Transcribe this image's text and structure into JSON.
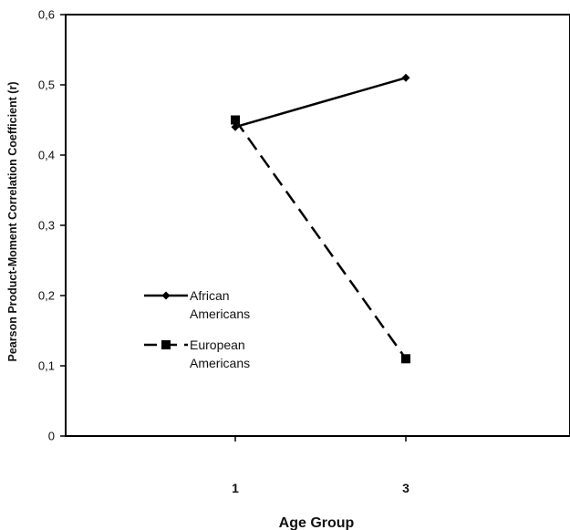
{
  "chart_data": {
    "type": "line",
    "title": "",
    "xlabel": "Age Group",
    "ylabel": "Pearson Product-Moment Correlation Coefficient (r)",
    "categories": [
      "1",
      "3"
    ],
    "ylim": [
      0,
      0.6
    ],
    "yticks": [
      "0",
      "0,1",
      "0,2",
      "0,3",
      "0,4",
      "0,5",
      "0,6"
    ],
    "grid": false,
    "legend_position": "center-left",
    "series": [
      {
        "name": "African Americans",
        "values": [
          0.44,
          0.51
        ],
        "line_style": "solid",
        "marker": "diamond",
        "color": "#000000"
      },
      {
        "name": "European Americans",
        "values": [
          0.45,
          0.11
        ],
        "line_style": "dashed",
        "marker": "square",
        "color": "#000000"
      }
    ]
  }
}
